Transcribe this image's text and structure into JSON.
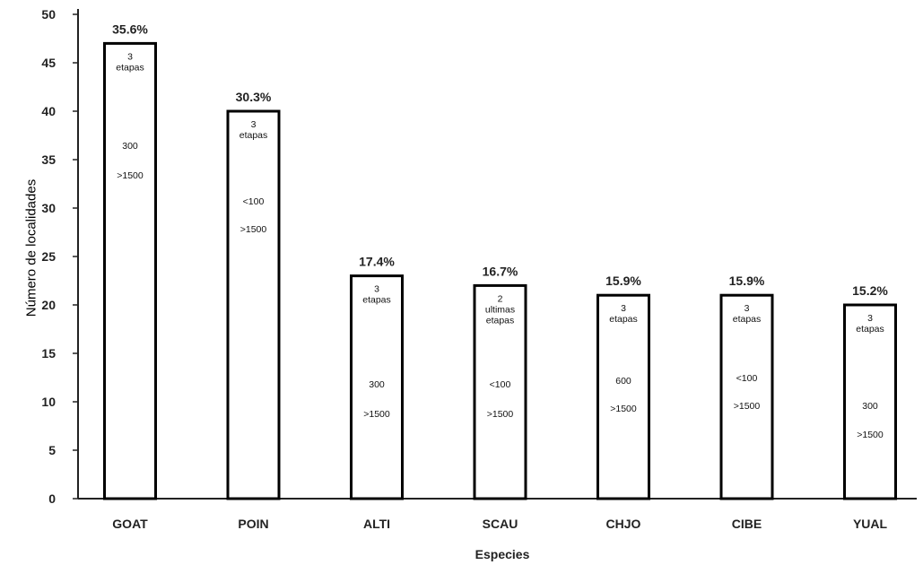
{
  "chart_data": {
    "type": "bar",
    "xlabel": "Especies",
    "ylabel": "Número de localidades",
    "ylim": [
      0,
      50
    ],
    "yticks": [
      0,
      5,
      10,
      15,
      20,
      25,
      30,
      35,
      40,
      45,
      50
    ],
    "grid": false,
    "categories": [
      "GOAT",
      "POIN",
      "ALTI",
      "SCAU",
      "CHJO",
      "CIBE",
      "YUAL"
    ],
    "values": [
      47,
      40,
      23,
      22,
      21,
      21,
      20
    ],
    "percent_labels": [
      "35.6%",
      "30.3%",
      "17.4%",
      "16.7%",
      "15.9%",
      "15.9%",
      "15.2%"
    ],
    "bar_annotations": [
      {
        "stage_count": "3",
        "stage_text": [
          "etapas"
        ],
        "range_low": "300",
        "range_high": ">1500"
      },
      {
        "stage_count": "3",
        "stage_text": [
          "etapas"
        ],
        "range_low": "<100",
        "range_high": ">1500"
      },
      {
        "stage_count": "3",
        "stage_text": [
          "etapas"
        ],
        "range_low": "300",
        "range_high": ">1500"
      },
      {
        "stage_count": "2",
        "stage_text": [
          "ultimas",
          "etapas"
        ],
        "range_low": "<100",
        "range_high": ">1500"
      },
      {
        "stage_count": "3",
        "stage_text": [
          "etapas"
        ],
        "range_low": "600",
        "range_high": ">1500"
      },
      {
        "stage_count": "3",
        "stage_text": [
          "etapas"
        ],
        "range_low": "<100",
        "range_high": ">1500"
      },
      {
        "stage_count": "3",
        "stage_text": [
          "etapas"
        ],
        "range_low": "300",
        "range_high": ">1500"
      }
    ]
  }
}
